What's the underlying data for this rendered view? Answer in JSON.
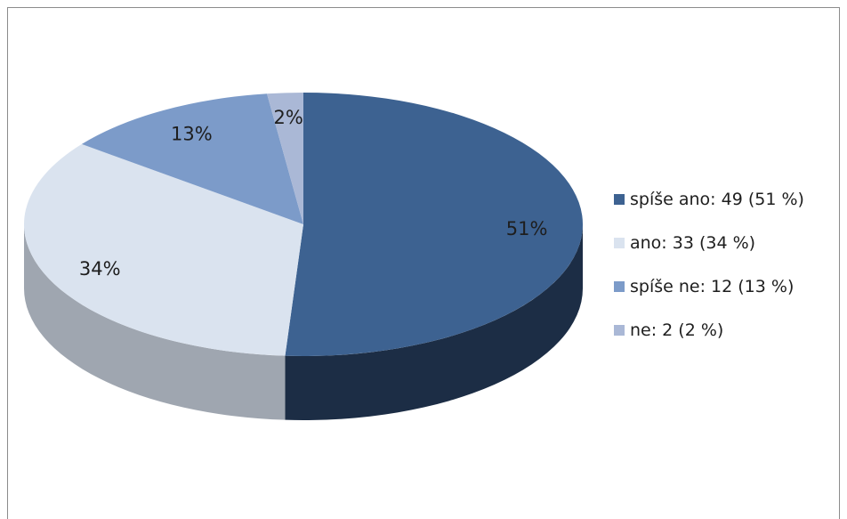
{
  "chart_data": {
    "type": "pie",
    "title": "",
    "slices": [
      {
        "label": "spíše ano",
        "value": 49,
        "percent": 51,
        "pct_label": "51%",
        "legend": "spíše ano: 49 (51 %)",
        "color": "#3d6291",
        "side_color": "#1c2d45"
      },
      {
        "label": "ano",
        "value": 33,
        "percent": 34,
        "pct_label": "34%",
        "legend": "ano: 33 (34 %)",
        "color": "#dae3ef",
        "side_color": "#9fa6b0"
      },
      {
        "label": "spíše ne",
        "value": 12,
        "percent": 13,
        "pct_label": "13%",
        "legend": "spíše ne: 12 (13 %)",
        "color": "#7c9bc9",
        "side_color": "#4a5e7c"
      },
      {
        "label": "ne",
        "value": 2,
        "percent": 2,
        "pct_label": "2%",
        "legend": "ne: 2 (2 %)",
        "color": "#aab8d6",
        "side_color": "#6f7a90"
      }
    ],
    "start_angle_deg": 90,
    "direction": "clockwise",
    "legend_position": "right",
    "style": "3d"
  }
}
